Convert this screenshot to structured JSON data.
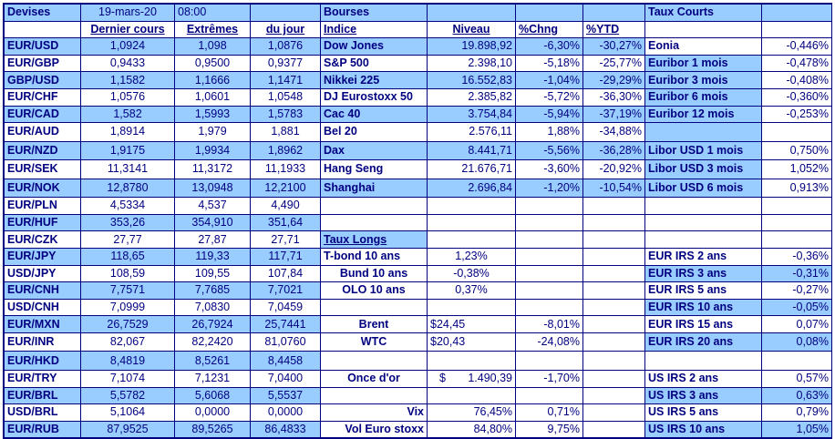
{
  "header": {
    "devises": "Devises",
    "date": "19-mars-20",
    "time": "08:00",
    "bourses": "Bourses",
    "taux_courts": "Taux Courts",
    "col_dernier": "Dernier cours",
    "col_extremes": "Extrêmes",
    "col_du_jour": "du jour",
    "col_indice": "Indice",
    "col_niveau": "Niveau",
    "col_chng": "%Chng",
    "col_ytd": "%YTD"
  },
  "rows": [
    {
      "pair": "EUR/USD",
      "last": "1,0924",
      "ext": "1,098",
      "day": "1,0876",
      "idx": "Dow Jones",
      "lvl": "19.898,92",
      "chg": "-6,30%",
      "ytd": "-30,27%",
      "rate": "Eonia",
      "rv": "-0,446%"
    },
    {
      "pair": "EUR/GBP",
      "last": "0,9433",
      "ext": "0,9500",
      "day": "0,9377",
      "idx": "S&P 500",
      "lvl": "2.398,10",
      "chg": "-5,18%",
      "ytd": "-25,77%",
      "rate": "Euribor 1 mois",
      "rv": "-0,478%"
    },
    {
      "pair": "GBP/USD",
      "last": "1,1582",
      "ext": "1,1666",
      "day": "1,1471",
      "idx": "Nikkei 225",
      "lvl": "16.552,83",
      "chg": "-1,04%",
      "ytd": "-29,29%",
      "rate": "Euribor 3 mois",
      "rv": "-0,408%"
    },
    {
      "pair": "EUR/CHF",
      "last": "1,0576",
      "ext": "1,0601",
      "day": "1,0548",
      "idx": "DJ Eurostoxx 50",
      "lvl": "2.385,82",
      "chg": "-5,72%",
      "ytd": "-36,30%",
      "rate": "Euribor 6 mois",
      "rv": "-0,360%"
    },
    {
      "pair": "EUR/CAD",
      "last": "1,582",
      "ext": "1,5993",
      "day": "1,5783",
      "idx": "Cac 40",
      "lvl": "3.754,84",
      "chg": "-5,94%",
      "ytd": "-37,19%",
      "rate": "Euribor 12 mois",
      "rv": "-0,253%"
    },
    {
      "pair": "EUR/AUD",
      "last": "1,8914",
      "ext": "1,979",
      "day": "1,881",
      "idx": "Bel 20",
      "lvl": "2.576,11",
      "chg": "1,88%",
      "ytd": "-34,88%",
      "rate": "",
      "rv": ""
    },
    {
      "pair": "EUR/NZD",
      "last": "1,9175",
      "ext": "1,9934",
      "day": "1,8962",
      "idx": "Dax",
      "lvl": "8.441,71",
      "chg": "-5,56%",
      "ytd": "-36,28%",
      "rate": "Libor USD 1 mois",
      "rv": "0,750%"
    },
    {
      "pair": "EUR/SEK",
      "last": "11,3141",
      "ext": "11,3172",
      "day": "11,1933",
      "idx": "Hang Seng",
      "lvl": "21.676,71",
      "chg": "-3,60%",
      "ytd": "-20,92%",
      "rate": "Libor USD 3 mois",
      "rv": "1,052%"
    },
    {
      "pair": "EUR/NOK",
      "last": "12,8780",
      "ext": "13,0948",
      "day": "12,2100",
      "idx": "Shanghai",
      "lvl": "2.696,84",
      "chg": "-1,20%",
      "ytd": "-10,54%",
      "rate": "Libor USD 6 mois",
      "rv": "0,913%"
    },
    {
      "pair": "EUR/PLN",
      "last": "4,5334",
      "ext": "4,537",
      "day": "4,490",
      "idx": "",
      "lvl": "",
      "chg": "",
      "ytd": "",
      "rate": "",
      "rv": ""
    },
    {
      "pair": "EUR/HUF",
      "last": "353,26",
      "ext": "354,910",
      "day": "351,64",
      "idx": "",
      "lvl": "",
      "chg": "",
      "ytd": "",
      "rate": "",
      "rv": ""
    },
    {
      "pair": "EUR/CZK",
      "last": "27,77",
      "ext": "27,87",
      "day": "27,71",
      "idx": "Taux Longs",
      "lvl": "",
      "chg": "",
      "ytd": "",
      "rate": "",
      "rv": ""
    },
    {
      "pair": "EUR/JPY",
      "last": "118,65",
      "ext": "119,33",
      "day": "117,71",
      "idx": "T-bond 10 ans",
      "lvl": "1,23%",
      "chg": "",
      "ytd": "",
      "rate": "EUR IRS 2 ans",
      "rv": "-0,36%"
    },
    {
      "pair": "USD/JPY",
      "last": "108,59",
      "ext": "109,55",
      "day": "107,84",
      "idx": "Bund 10 ans",
      "lvl": "-0,38%",
      "chg": "",
      "ytd": "",
      "rate": "EUR IRS 3 ans",
      "rv": "-0,31%"
    },
    {
      "pair": "EUR/CNH",
      "last": "7,7571",
      "ext": "7,7685",
      "day": "7,7021",
      "idx": "OLO 10 ans",
      "lvl": "0,37%",
      "chg": "",
      "ytd": "",
      "rate": "EUR IRS 5 ans",
      "rv": "-0,27%"
    },
    {
      "pair": "USD/CNH",
      "last": "7,0999",
      "ext": "7,0830",
      "day": "7,0459",
      "idx": "",
      "lvl": "",
      "chg": "",
      "ytd": "",
      "rate": "EUR IRS 10 ans",
      "rv": "-0,05%"
    },
    {
      "pair": "EUR/MXN",
      "last": "26,7529",
      "ext": "26,7924",
      "day": "25,7441",
      "idx": "Brent",
      "lvl": "$24,45",
      "chg": "-8,01%",
      "ytd": "",
      "rate": "EUR IRS 15 ans",
      "rv": "0,07%"
    },
    {
      "pair": "EUR/INR",
      "last": "82,067",
      "ext": "82,2420",
      "day": "81,0760",
      "idx": "WTC",
      "lvl": "$20,43",
      "chg": "-24,08%",
      "ytd": "",
      "rate": "EUR IRS 20 ans",
      "rv": "0,08%"
    },
    {
      "pair": "EUR/HKD",
      "last": "8,4819",
      "ext": "8,5261",
      "day": "8,4458",
      "idx": "",
      "lvl": "",
      "chg": "",
      "ytd": "",
      "rate": "",
      "rv": ""
    },
    {
      "pair": "EUR/TRY",
      "last": "7,1074",
      "ext": "7,1231",
      "day": "7,0400",
      "idx": "Once d'or",
      "lvl_sym": "$",
      "lvl": "1.490,39",
      "chg": "-1,70%",
      "ytd": "",
      "rate": "US IRS 2 ans",
      "rv": "0,57%"
    },
    {
      "pair": "EUR/BRL",
      "last": "5,5782",
      "ext": "5,6068",
      "day": "5,5537",
      "idx": "",
      "lvl": "",
      "chg": "",
      "ytd": "",
      "rate": "US IRS 3 ans",
      "rv": "0,63%"
    },
    {
      "pair": "USD/BRL",
      "last": "5,1064",
      "ext": "0,0000",
      "day": "0,0000",
      "idx": "Vix",
      "lvl": "76,45%",
      "chg": "0,71%",
      "ytd": "",
      "rate": "US IRS 5 ans",
      "rv": "0,79%"
    },
    {
      "pair": "EUR/RUB",
      "last": "87,9525",
      "ext": "89,5265",
      "day": "86,4833",
      "idx": "Vol Euro stoxx",
      "lvl": "84,80%",
      "chg": "9,75%",
      "ytd": "",
      "rate": "US IRS 10 ans",
      "rv": "1,05%"
    }
  ]
}
